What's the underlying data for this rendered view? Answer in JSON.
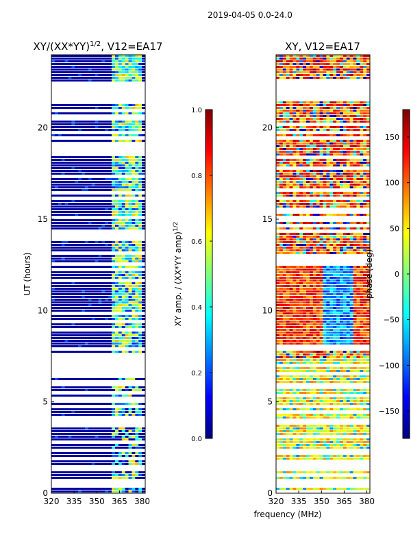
{
  "page": {
    "suptitle": "2019-04-05 0.0-24.0"
  },
  "colors": {
    "jet": [
      "#00007f",
      "#0000ff",
      "#007fff",
      "#00ffff",
      "#7fff7f",
      "#ffff00",
      "#ff7f00",
      "#ff0000",
      "#7f0000"
    ],
    "background": "#ffffff",
    "axis": "#000000"
  },
  "chart_data": [
    {
      "type": "heatmap",
      "title": "XY/(XX*YY)^1/2, V12=EA17",
      "title_main": "XY/(XX*YY)",
      "title_exp": "1/2",
      "title_tail": ", V12=EA17",
      "xlabel": "",
      "ylabel": "UT (hours)",
      "xlim": [
        320,
        382
      ],
      "ylim": [
        0,
        24
      ],
      "xticks": [
        320,
        335,
        350,
        365,
        380
      ],
      "yticks": [
        0,
        5,
        10,
        15,
        20
      ],
      "data_gaps_hours": [
        [
          21.5,
          22.6
        ],
        [
          6.4,
          7.6
        ],
        [
          7.8,
          7.9
        ]
      ],
      "hot_band_mhz": [
        360,
        380
      ],
      "colorbar": {
        "label": "XY amp. / (XX*YY amp)^1/2",
        "label_main": "XY amp. / (XX*YY amp)",
        "label_exp": "1/2",
        "range": [
          0.0,
          1.0
        ],
        "ticks": [
          "0.0",
          "0.2",
          "0.4",
          "0.6",
          "0.8",
          "1.0"
        ]
      }
    },
    {
      "type": "heatmap",
      "title": "XY, V12=EA17",
      "xlabel": "frequency (MHz)",
      "ylabel": "",
      "xlim": [
        320,
        382
      ],
      "ylim": [
        0,
        24
      ],
      "xticks": [
        320,
        335,
        350,
        365,
        380
      ],
      "yticks": [
        0,
        5,
        10,
        15,
        20
      ],
      "data_gaps_hours": [
        [
          21.5,
          22.6
        ],
        [
          12.6,
          13.0
        ],
        [
          7.9,
          8.0
        ]
      ],
      "colorbar": {
        "label": "phase (deg)",
        "range": [
          -180,
          180
        ],
        "ticks": [
          "150",
          "100",
          "50",
          "0",
          "−50",
          "−100",
          "−150"
        ]
      }
    }
  ]
}
